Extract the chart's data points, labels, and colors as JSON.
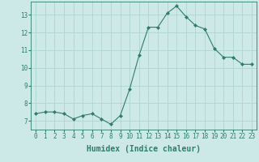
{
  "x": [
    0,
    1,
    2,
    3,
    4,
    5,
    6,
    7,
    8,
    9,
    10,
    11,
    12,
    13,
    14,
    15,
    16,
    17,
    18,
    19,
    20,
    21,
    22,
    23
  ],
  "y": [
    7.4,
    7.5,
    7.5,
    7.4,
    7.1,
    7.3,
    7.4,
    7.1,
    6.8,
    7.3,
    8.8,
    10.7,
    12.3,
    12.3,
    13.1,
    13.5,
    12.9,
    12.4,
    12.2,
    11.1,
    10.6,
    10.6,
    10.2,
    10.2
  ],
  "line_color": "#2e7d6e",
  "marker": "D",
  "marker_size": 2.0,
  "bg_color": "#cce9e7",
  "grid_color": "#b0d4d0",
  "xlabel": "Humidex (Indice chaleur)",
  "xlim": [
    -0.5,
    23.5
  ],
  "ylim": [
    6.5,
    13.75
  ],
  "yticks": [
    7,
    8,
    9,
    10,
    11,
    12,
    13
  ],
  "xticks": [
    0,
    1,
    2,
    3,
    4,
    5,
    6,
    7,
    8,
    9,
    10,
    11,
    12,
    13,
    14,
    15,
    16,
    17,
    18,
    19,
    20,
    21,
    22,
    23
  ],
  "tick_label_fontsize": 5.5,
  "xlabel_fontsize": 7.0,
  "tick_color": "#2e7d6e",
  "label_color": "#2e7d6e",
  "spine_color": "#2e7d6e",
  "line_width": 0.8
}
